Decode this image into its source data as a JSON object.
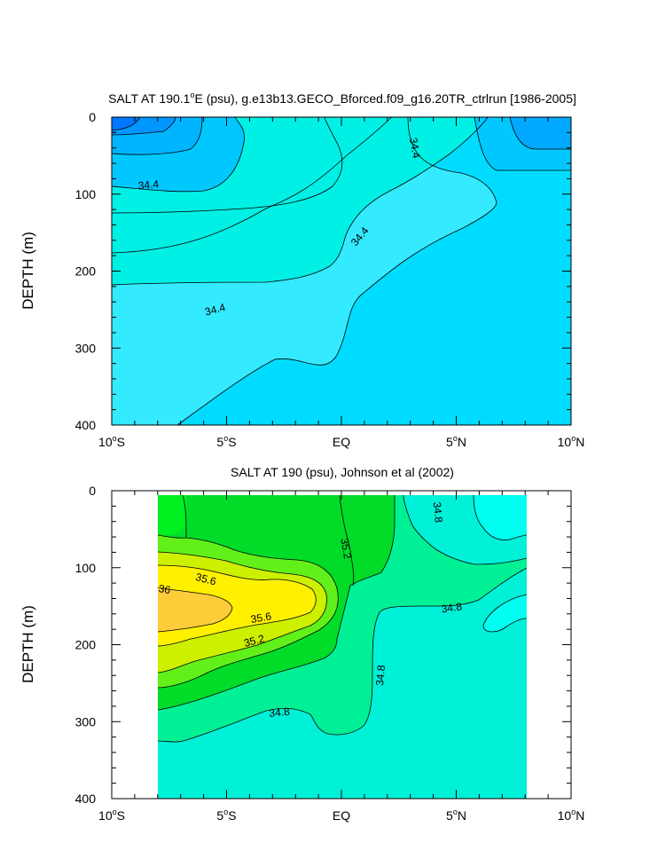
{
  "chart_data": [
    {
      "type": "contour",
      "title_main": "SALT AT 190.1",
      "title_deg": "o",
      "title_rest": "E (psu), g.e13b13.GECO_Bforced.f09_g16.20TR_ctrlrun [1986-2005]",
      "ylabel": "DEPTH (m)",
      "xlim": [
        -10,
        10
      ],
      "ylim": [
        400,
        0
      ],
      "x_ticks": [
        {
          "value": -10,
          "num": "10",
          "deg": "o",
          "suffix": "S"
        },
        {
          "value": -5,
          "num": "5",
          "deg": "o",
          "suffix": "S"
        },
        {
          "value": 0,
          "num": "EQ",
          "deg": "",
          "suffix": ""
        },
        {
          "value": 5,
          "num": "5",
          "deg": "o",
          "suffix": "N"
        },
        {
          "value": 10,
          "num": "10",
          "deg": "o",
          "suffix": "N"
        }
      ],
      "y_ticks": [
        {
          "value": 0,
          "label": "0"
        },
        {
          "value": 100,
          "label": "100"
        },
        {
          "value": 200,
          "label": "200"
        },
        {
          "value": 300,
          "label": "300"
        },
        {
          "value": 400,
          "label": "400"
        }
      ],
      "contour_labels": [
        {
          "text": "34.4",
          "x": 3.2,
          "y": 40,
          "angle": 80
        },
        {
          "text": "34.4",
          "x": -8.4,
          "y": 88,
          "angle": -5
        },
        {
          "text": "34.4",
          "x": 0.8,
          "y": 155,
          "angle": -50
        },
        {
          "text": "34.4",
          "x": -5.5,
          "y": 250,
          "angle": -15
        }
      ]
    },
    {
      "type": "contour",
      "title_main": "SALT AT 190 (psu), Johnson et al (2002)",
      "ylabel": "DEPTH (m)",
      "xlim": [
        -10,
        10
      ],
      "ylim": [
        400,
        0
      ],
      "x_ticks": [
        {
          "value": -10,
          "num": "10",
          "deg": "o",
          "suffix": "S"
        },
        {
          "value": -5,
          "num": "5",
          "deg": "o",
          "suffix": "S"
        },
        {
          "value": 0,
          "num": "EQ",
          "deg": "",
          "suffix": ""
        },
        {
          "value": 5,
          "num": "5",
          "deg": "o",
          "suffix": "N"
        },
        {
          "value": 10,
          "num": "10",
          "deg": "o",
          "suffix": "N"
        }
      ],
      "y_ticks": [
        {
          "value": 0,
          "label": "0"
        },
        {
          "value": 100,
          "label": "100"
        },
        {
          "value": 200,
          "label": "200"
        },
        {
          "value": 300,
          "label": "300"
        },
        {
          "value": 400,
          "label": "400"
        }
      ],
      "contour_labels": [
        {
          "text": "35.2",
          "x": 0.2,
          "y": 75,
          "angle": 80
        },
        {
          "text": "34.8",
          "x": 4.2,
          "y": 28,
          "angle": 85
        },
        {
          "text": "35.6",
          "x": -5.9,
          "y": 115,
          "angle": 15
        },
        {
          "text": "36",
          "x": -7.7,
          "y": 128,
          "angle": 10
        },
        {
          "text": "35.6",
          "x": -3.5,
          "y": 165,
          "angle": -10
        },
        {
          "text": "35.2",
          "x": -3.8,
          "y": 195,
          "angle": -15
        },
        {
          "text": "34.8",
          "x": 4.8,
          "y": 152,
          "angle": -8
        },
        {
          "text": "34.8",
          "x": 1.7,
          "y": 240,
          "angle": -85
        },
        {
          "text": "34.8",
          "x": -2.7,
          "y": 288,
          "angle": -5
        }
      ]
    }
  ]
}
